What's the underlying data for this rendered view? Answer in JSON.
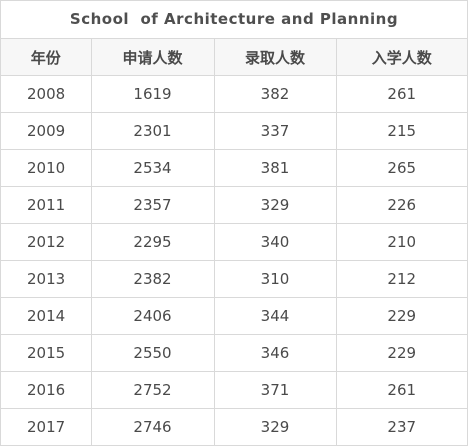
{
  "table": {
    "title": "School  of Architecture and Planning",
    "headers": [
      "年份",
      "申请人数",
      "录取人数",
      "入学人数"
    ],
    "rows": [
      [
        "2008",
        "1619",
        "382",
        "261"
      ],
      [
        "2009",
        "2301",
        "337",
        "215"
      ],
      [
        "2010",
        "2534",
        "381",
        "265"
      ],
      [
        "2011",
        "2357",
        "329",
        "226"
      ],
      [
        "2012",
        "2295",
        "340",
        "210"
      ],
      [
        "2013",
        "2382",
        "310",
        "212"
      ],
      [
        "2014",
        "2406",
        "344",
        "229"
      ],
      [
        "2015",
        "2550",
        "346",
        "229"
      ],
      [
        "2016",
        "2752",
        "371",
        "261"
      ],
      [
        "2017",
        "2746",
        "329",
        "237"
      ]
    ]
  }
}
